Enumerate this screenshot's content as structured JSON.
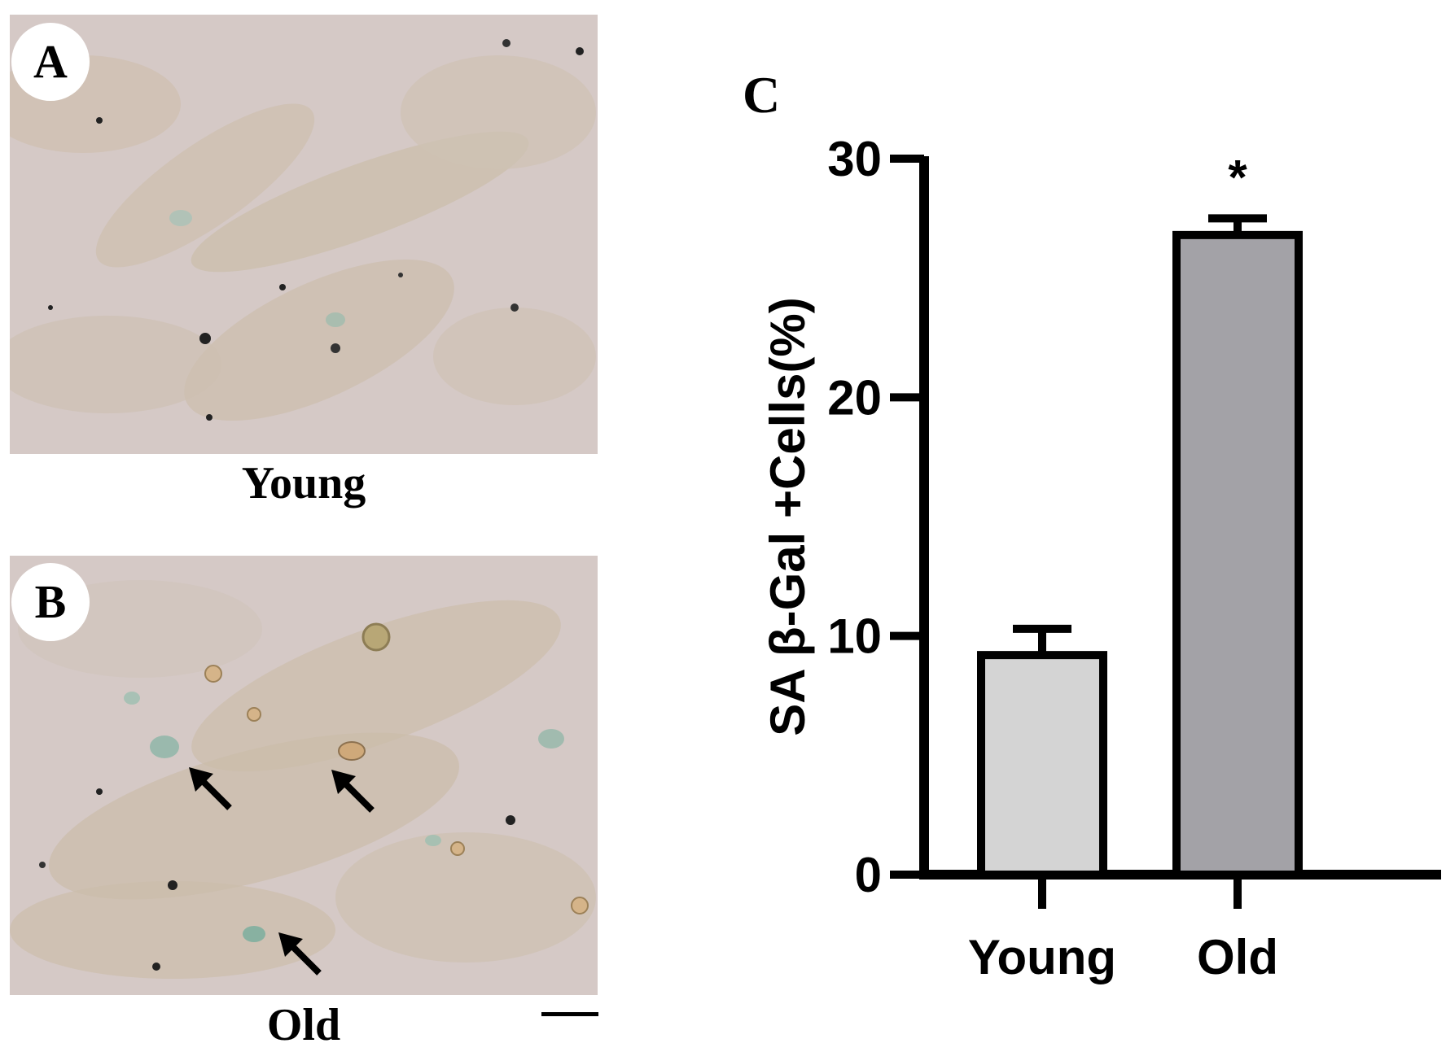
{
  "panels": {
    "a": {
      "letter": "A",
      "caption": "Young"
    },
    "b": {
      "letter": "B",
      "caption": "Old"
    },
    "c": {
      "letter": "C"
    }
  },
  "chart_data": {
    "type": "bar",
    "categories": [
      "Young",
      "Old"
    ],
    "values": [
      9.2,
      26.8
    ],
    "errors": [
      1.1,
      0.7
    ],
    "colors": [
      "#d4d4d4",
      "#a3a2a7"
    ],
    "annotations": [
      "",
      "*"
    ],
    "title": "",
    "xlabel": "",
    "ylabel": "SA β-Gal +Cells(%)",
    "ylim": [
      0,
      30
    ],
    "yticks": [
      0,
      10,
      20,
      30
    ],
    "grid": false
  }
}
